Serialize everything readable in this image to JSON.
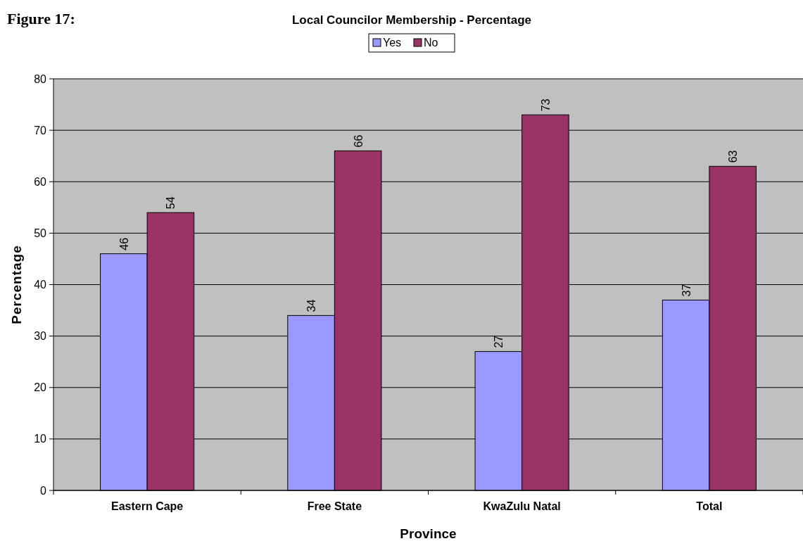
{
  "chart_data": {
    "type": "bar",
    "title": "Local Councilor Membership - Percentage",
    "xlabel": "Province",
    "ylabel": "Percentage",
    "annotations": [
      "Figure 17:"
    ],
    "categories": [
      "Eastern Cape",
      "Free State",
      "KwaZulu Natal",
      "Total"
    ],
    "series": [
      {
        "name": "Yes",
        "color": "#9999ff",
        "values": [
          46,
          34,
          27,
          37
        ]
      },
      {
        "name": "No",
        "color": "#993366",
        "values": [
          54,
          66,
          73,
          63
        ]
      }
    ],
    "ylim": [
      0,
      80
    ],
    "yticks": [
      0,
      10,
      20,
      30,
      40,
      50,
      60,
      70,
      80
    ],
    "grid": "y",
    "legend": "top",
    "data_labels": true
  }
}
